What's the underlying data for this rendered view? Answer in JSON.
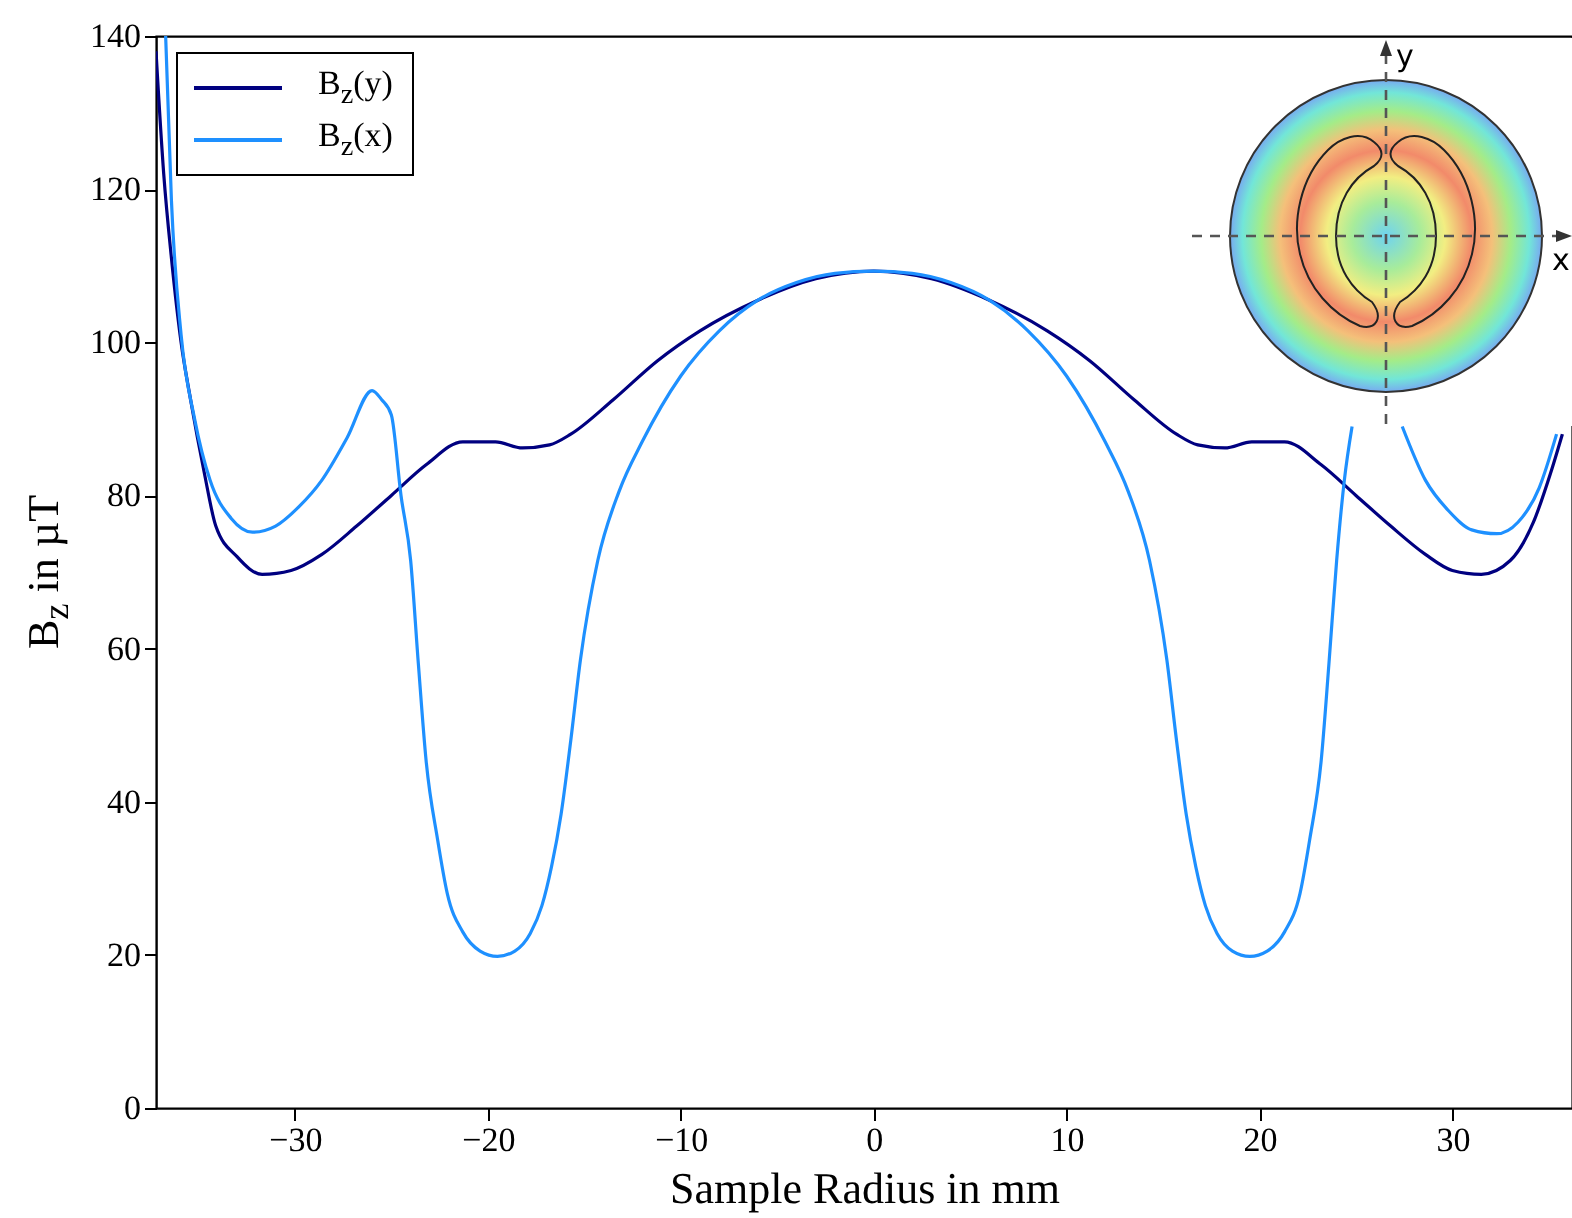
{
  "chart_data": {
    "type": "line",
    "xlabel": "Sample Radius in mm",
    "ylabel": "B$_{z}$ in µT",
    "xlim": [
      -37.2,
      36.2
    ],
    "ylim": [
      0,
      140
    ],
    "xticks": [
      -30,
      -20,
      -10,
      0,
      10,
      20,
      30
    ],
    "yticks": [
      0,
      20,
      40,
      60,
      80,
      100,
      120,
      140
    ],
    "grid": false,
    "legend": "top left",
    "marker": "none",
    "line_style": "solid",
    "annotations": [
      "y",
      "x"
    ],
    "series": [
      {
        "name": "B$_{z}$(y)",
        "color": "#000080",
        "x": [
          -37.2,
          -36.8,
          -36.4,
          -35.9,
          -35.4,
          -34.7,
          -34.1,
          -33,
          -31.7,
          -30.2,
          -28.6,
          -26.8,
          -25,
          -23.2,
          -21.3,
          -19.6,
          -18.2,
          -16.8,
          -15.7,
          -13.5,
          -11.2,
          -9,
          -6,
          -3,
          0,
          3,
          6,
          9,
          11.2,
          13.5,
          15.7,
          16.8,
          18.2,
          19.6,
          21.3,
          23.2,
          25,
          26.8,
          28.6,
          30,
          31.5,
          33,
          34.2,
          35.1,
          35.7
        ],
        "values": [
          138,
          122,
          111,
          100,
          92.4,
          83,
          76,
          72,
          69.7,
          70.2,
          72.3,
          76,
          80,
          84,
          87,
          87,
          86.2,
          86.6,
          88,
          92.5,
          97.6,
          101.5,
          105.5,
          108.3,
          109.3,
          108.3,
          105.5,
          101.5,
          97.6,
          92.5,
          88,
          86.6,
          86.2,
          87,
          87,
          84,
          80,
          76,
          72.3,
          70.2,
          69.7,
          71.5,
          76.5,
          83,
          88
        ]
      },
      {
        "name": "B$_{z}$(x)",
        "color": "#1e90ff",
        "x": [
          -36.7,
          -36.4,
          -35.9,
          -35.2,
          -34.4,
          -33.3,
          -32.2,
          -31,
          -29.8,
          -28.6,
          -27.3,
          -26,
          -25.5,
          -25,
          -24.5,
          -24,
          -23.6,
          -23.2,
          -22.6,
          -22.1,
          -21.3,
          -20.4,
          -19.5,
          -18.6,
          -17.8,
          -17.2,
          -16.7,
          -16.2,
          -15.7,
          -15.2,
          -14.3,
          -13.2,
          -12,
          -10,
          -8,
          -6,
          -4,
          -2,
          0,
          2,
          4,
          6,
          8,
          10,
          12,
          13.2,
          14.3,
          15.2,
          15.7,
          16.2,
          16.7,
          17.2,
          17.8,
          18.6,
          19.5,
          20.4,
          21.3,
          22.1,
          22.6,
          23.2,
          23.6,
          24,
          24.4,
          24.8,
          26,
          27.4,
          28.6,
          29.8,
          31,
          32.3,
          33.4,
          34.5,
          35.4
        ],
        "values": [
          140,
          118.5,
          101,
          90,
          82,
          77,
          75.2,
          76,
          78.5,
          82,
          87.5,
          93.7,
          92.5,
          90.5,
          80,
          71.5,
          58,
          45.4,
          35,
          28,
          23,
          20.5,
          19.8,
          20.5,
          22.8,
          26.4,
          31.5,
          38.4,
          48,
          58.5,
          71.5,
          80.5,
          87,
          95.6,
          101.5,
          105.5,
          107.8,
          109,
          109.3,
          109,
          107.8,
          105.5,
          101.5,
          95.6,
          87,
          80.5,
          71.5,
          58.5,
          48,
          38.4,
          31.5,
          26.4,
          22.8,
          20.5,
          19.8,
          20.5,
          23,
          28,
          35,
          45.4,
          58,
          71.5,
          82,
          89,
          null,
          89,
          82,
          78,
          75.5,
          75,
          76.5,
          81,
          88
        ]
      }
    ]
  }
}
